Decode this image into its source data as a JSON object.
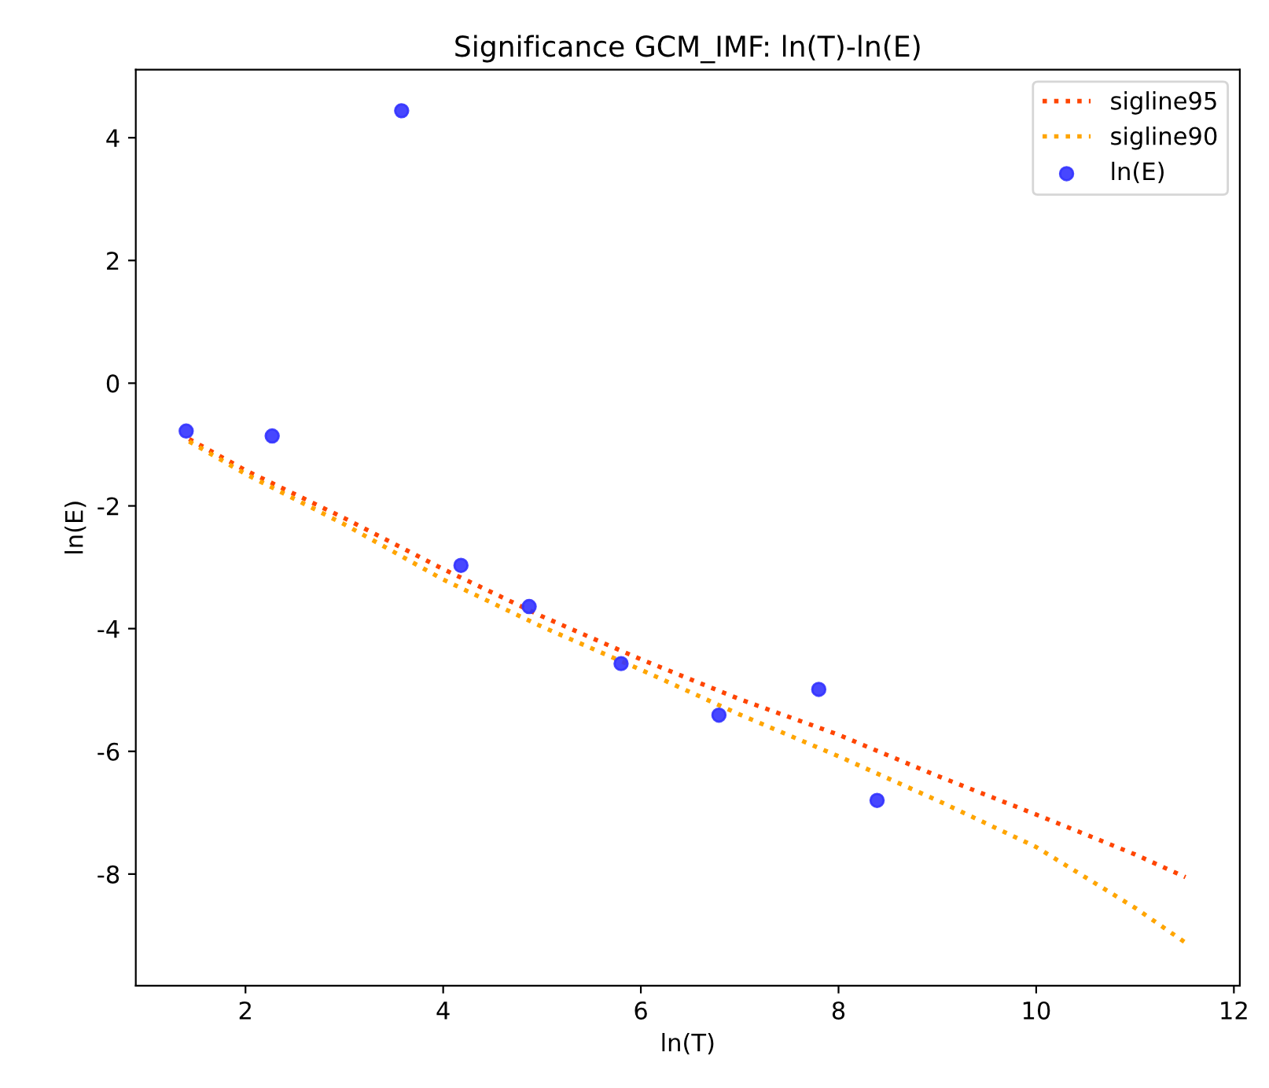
{
  "chart_data": {
    "type": "line",
    "title": "Significance GCM_IMF: ln(T)-ln(E)",
    "xlabel": "ln(T)",
    "ylabel": "ln(E)",
    "xlim": [
      0.89,
      12.06
    ],
    "ylim": [
      -9.82,
      5.11
    ],
    "xticks": [
      2,
      4,
      6,
      8,
      10,
      12
    ],
    "yticks": [
      -8,
      -6,
      -4,
      -2,
      0,
      2,
      4
    ],
    "grid": false,
    "legend": "top right",
    "series": [
      {
        "name": "sigline95",
        "line_style": "dotted",
        "marker": "none",
        "color": "#ff4500",
        "x": [
          1.43,
          2,
          3,
          4,
          5,
          6,
          7,
          8,
          9,
          10,
          11,
          11.51
        ],
        "values": [
          -0.91,
          -1.42,
          -2.2,
          -3.03,
          -3.8,
          -4.5,
          -5.15,
          -5.73,
          -6.4,
          -7.03,
          -7.68,
          -8.05
        ]
      },
      {
        "name": "sigline90",
        "line_style": "dotted",
        "marker": "none",
        "color": "#ffa500",
        "x": [
          1.43,
          2,
          3,
          4,
          5,
          6,
          7,
          8,
          9,
          10,
          11,
          11.53
        ],
        "values": [
          -0.95,
          -1.48,
          -2.3,
          -3.2,
          -3.97,
          -4.67,
          -5.4,
          -6.08,
          -6.8,
          -7.56,
          -8.55,
          -9.14
        ]
      },
      {
        "name": "ln(E)",
        "type": "scatter",
        "marker": "circle",
        "color": "#3333ff",
        "x": [
          1.4,
          2.27,
          3.58,
          4.18,
          4.87,
          5.8,
          6.79,
          7.8,
          8.39
        ],
        "values": [
          -0.78,
          -0.86,
          4.44,
          -2.97,
          -3.64,
          -4.57,
          -5.41,
          -4.99,
          -6.8
        ]
      }
    ]
  }
}
